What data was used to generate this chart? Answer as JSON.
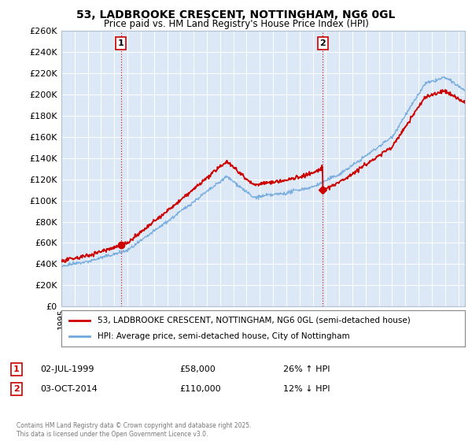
{
  "title1": "53, LADBROOKE CRESCENT, NOTTINGHAM, NG6 0GL",
  "title2": "Price paid vs. HM Land Registry's House Price Index (HPI)",
  "legend1": "53, LADBROOKE CRESCENT, NOTTINGHAM, NG6 0GL (semi-detached house)",
  "legend2": "HPI: Average price, semi-detached house, City of Nottingham",
  "annotation1_date": "02-JUL-1999",
  "annotation1_price": "£58,000",
  "annotation1_hpi": "26% ↑ HPI",
  "annotation2_date": "03-OCT-2014",
  "annotation2_price": "£110,000",
  "annotation2_hpi": "12% ↓ HPI",
  "footer": "Contains HM Land Registry data © Crown copyright and database right 2025.\nThis data is licensed under the Open Government Licence v3.0.",
  "red_color": "#cc0000",
  "blue_color": "#6fa8dc",
  "vline_color": "#cc0000",
  "grid_color": "#c8d8e8",
  "bg_color": "#ffffff",
  "plot_bg": "#dce8f5",
  "ylim": [
    0,
    260000
  ],
  "yticks": [
    0,
    20000,
    40000,
    60000,
    80000,
    100000,
    120000,
    140000,
    160000,
    180000,
    200000,
    220000,
    240000,
    260000
  ],
  "sale1_year": 1999.5,
  "sale1_price": 58000,
  "sale2_year": 2014.75,
  "sale2_price": 110000,
  "xmin": 1995,
  "xmax": 2025.5
}
